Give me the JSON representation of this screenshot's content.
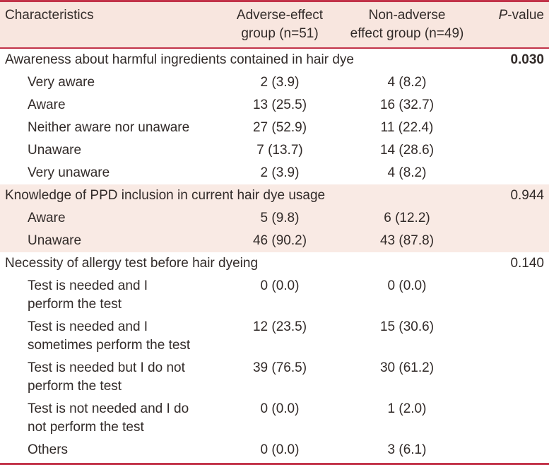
{
  "colors": {
    "accent_red": "#c23349",
    "header_bg": "#f8e6df",
    "band_bg": "#f9eae4",
    "text_color": "#322b29"
  },
  "table": {
    "header": {
      "characteristics": "Characteristics",
      "adverse": "Adverse-effect\ngroup (n=51)",
      "non_adverse": "Non-adverse\neffect group (n=49)",
      "p_italic": "P",
      "p_rest": "-value"
    },
    "sections": [
      {
        "label": "Awareness about harmful ingredients contained in hair dye",
        "p_value": "0.030",
        "p_bold": true,
        "highlighted": false,
        "rows": [
          {
            "label": "Very aware",
            "adverse": "2 (3.9)",
            "non_adverse": "4 (8.2)"
          },
          {
            "label": "Aware",
            "adverse": "13 (25.5)",
            "non_adverse": "16 (32.7)"
          },
          {
            "label": "Neither aware nor unaware",
            "adverse": "27 (52.9)",
            "non_adverse": "11 (22.4)"
          },
          {
            "label": "Unaware",
            "adverse": "7 (13.7)",
            "non_adverse": "14 (28.6)"
          },
          {
            "label": "Very unaware",
            "adverse": "2 (3.9)",
            "non_adverse": "4 (8.2)"
          }
        ]
      },
      {
        "label": "Knowledge of PPD inclusion in current hair dye usage",
        "p_value": "0.944",
        "p_bold": false,
        "highlighted": true,
        "rows": [
          {
            "label": "Aware",
            "adverse": "5 (9.8)",
            "non_adverse": "6 (12.2)"
          },
          {
            "label": "Unaware",
            "adverse": "46 (90.2)",
            "non_adverse": "43 (87.8)"
          }
        ]
      },
      {
        "label": "Necessity of allergy test before hair dyeing",
        "p_value": "0.140",
        "p_bold": false,
        "highlighted": false,
        "rows": [
          {
            "label": "Test is needed and I\nperform the test",
            "adverse": "0 (0.0)",
            "non_adverse": "0 (0.0)"
          },
          {
            "label": "Test is needed and I\nsometimes perform the test",
            "adverse": "12 (23.5)",
            "non_adverse": "15 (30.6)"
          },
          {
            "label": "Test is needed but I do not\nperform the test",
            "adverse": "39 (76.5)",
            "non_adverse": "30 (61.2)"
          },
          {
            "label": "Test is not needed and I do\nnot perform the test",
            "adverse": "0 (0.0)",
            "non_adverse": "1 (2.0)"
          },
          {
            "label": "Others",
            "adverse": "0 (0.0)",
            "non_adverse": "3 (6.1)"
          }
        ]
      }
    ]
  }
}
